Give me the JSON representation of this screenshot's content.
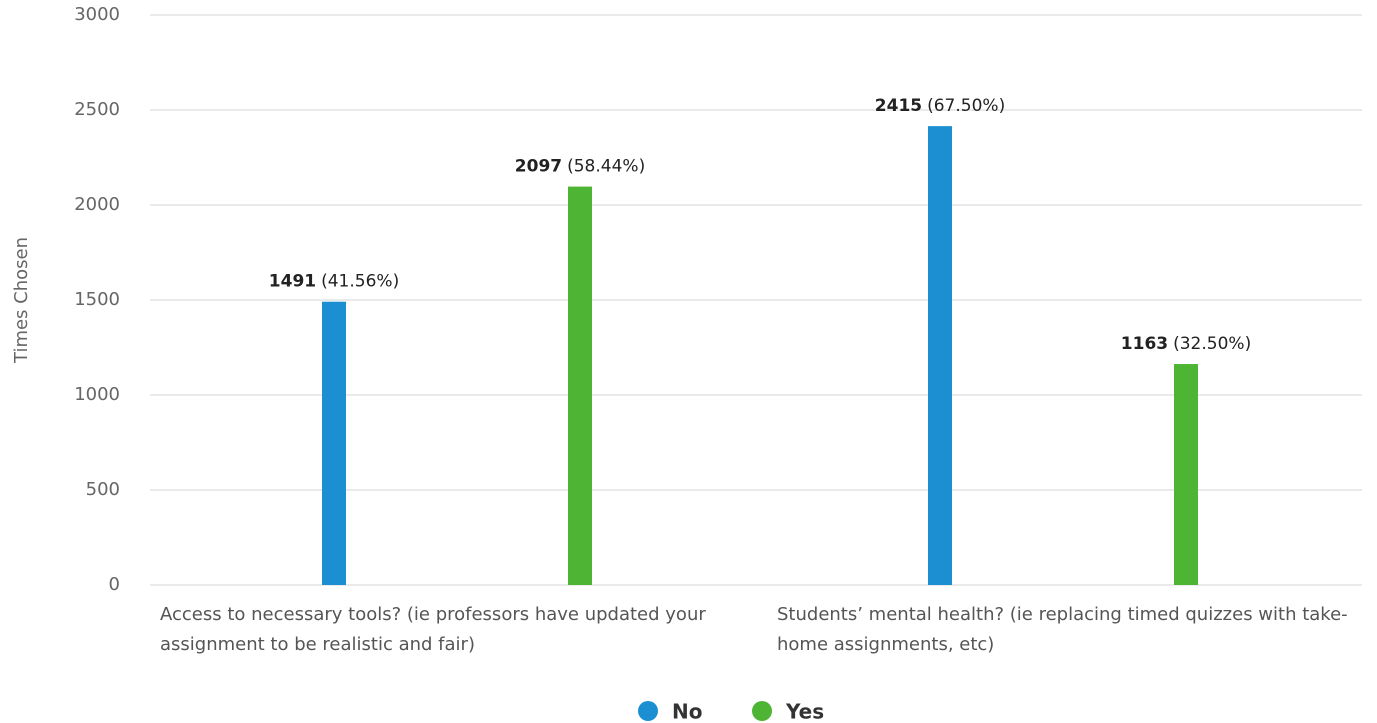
{
  "chart_data": {
    "type": "bar",
    "y_label": "Times Chosen",
    "categories": [
      "Access to necessary tools? (ie professors have updated your assignment to be realistic and fair)",
      "Students’ mental health? (ie replacing timed quizzes with take-home assignments, etc)"
    ],
    "series": [
      {
        "name": "No",
        "color": "#1b8fd2",
        "values": [
          1491,
          2415
        ],
        "percent_labels": [
          "(41.56%)",
          "(67.50%)"
        ]
      },
      {
        "name": "Yes",
        "color": "#4db533",
        "values": [
          2097,
          1163
        ],
        "percent_labels": [
          "(58.44%)",
          "(32.50%)"
        ]
      }
    ],
    "ylim": [
      0,
      3000
    ],
    "yticks": [
      0,
      500,
      1000,
      1500,
      2000,
      2500,
      3000
    ],
    "grid": true,
    "legend": "bottom"
  }
}
